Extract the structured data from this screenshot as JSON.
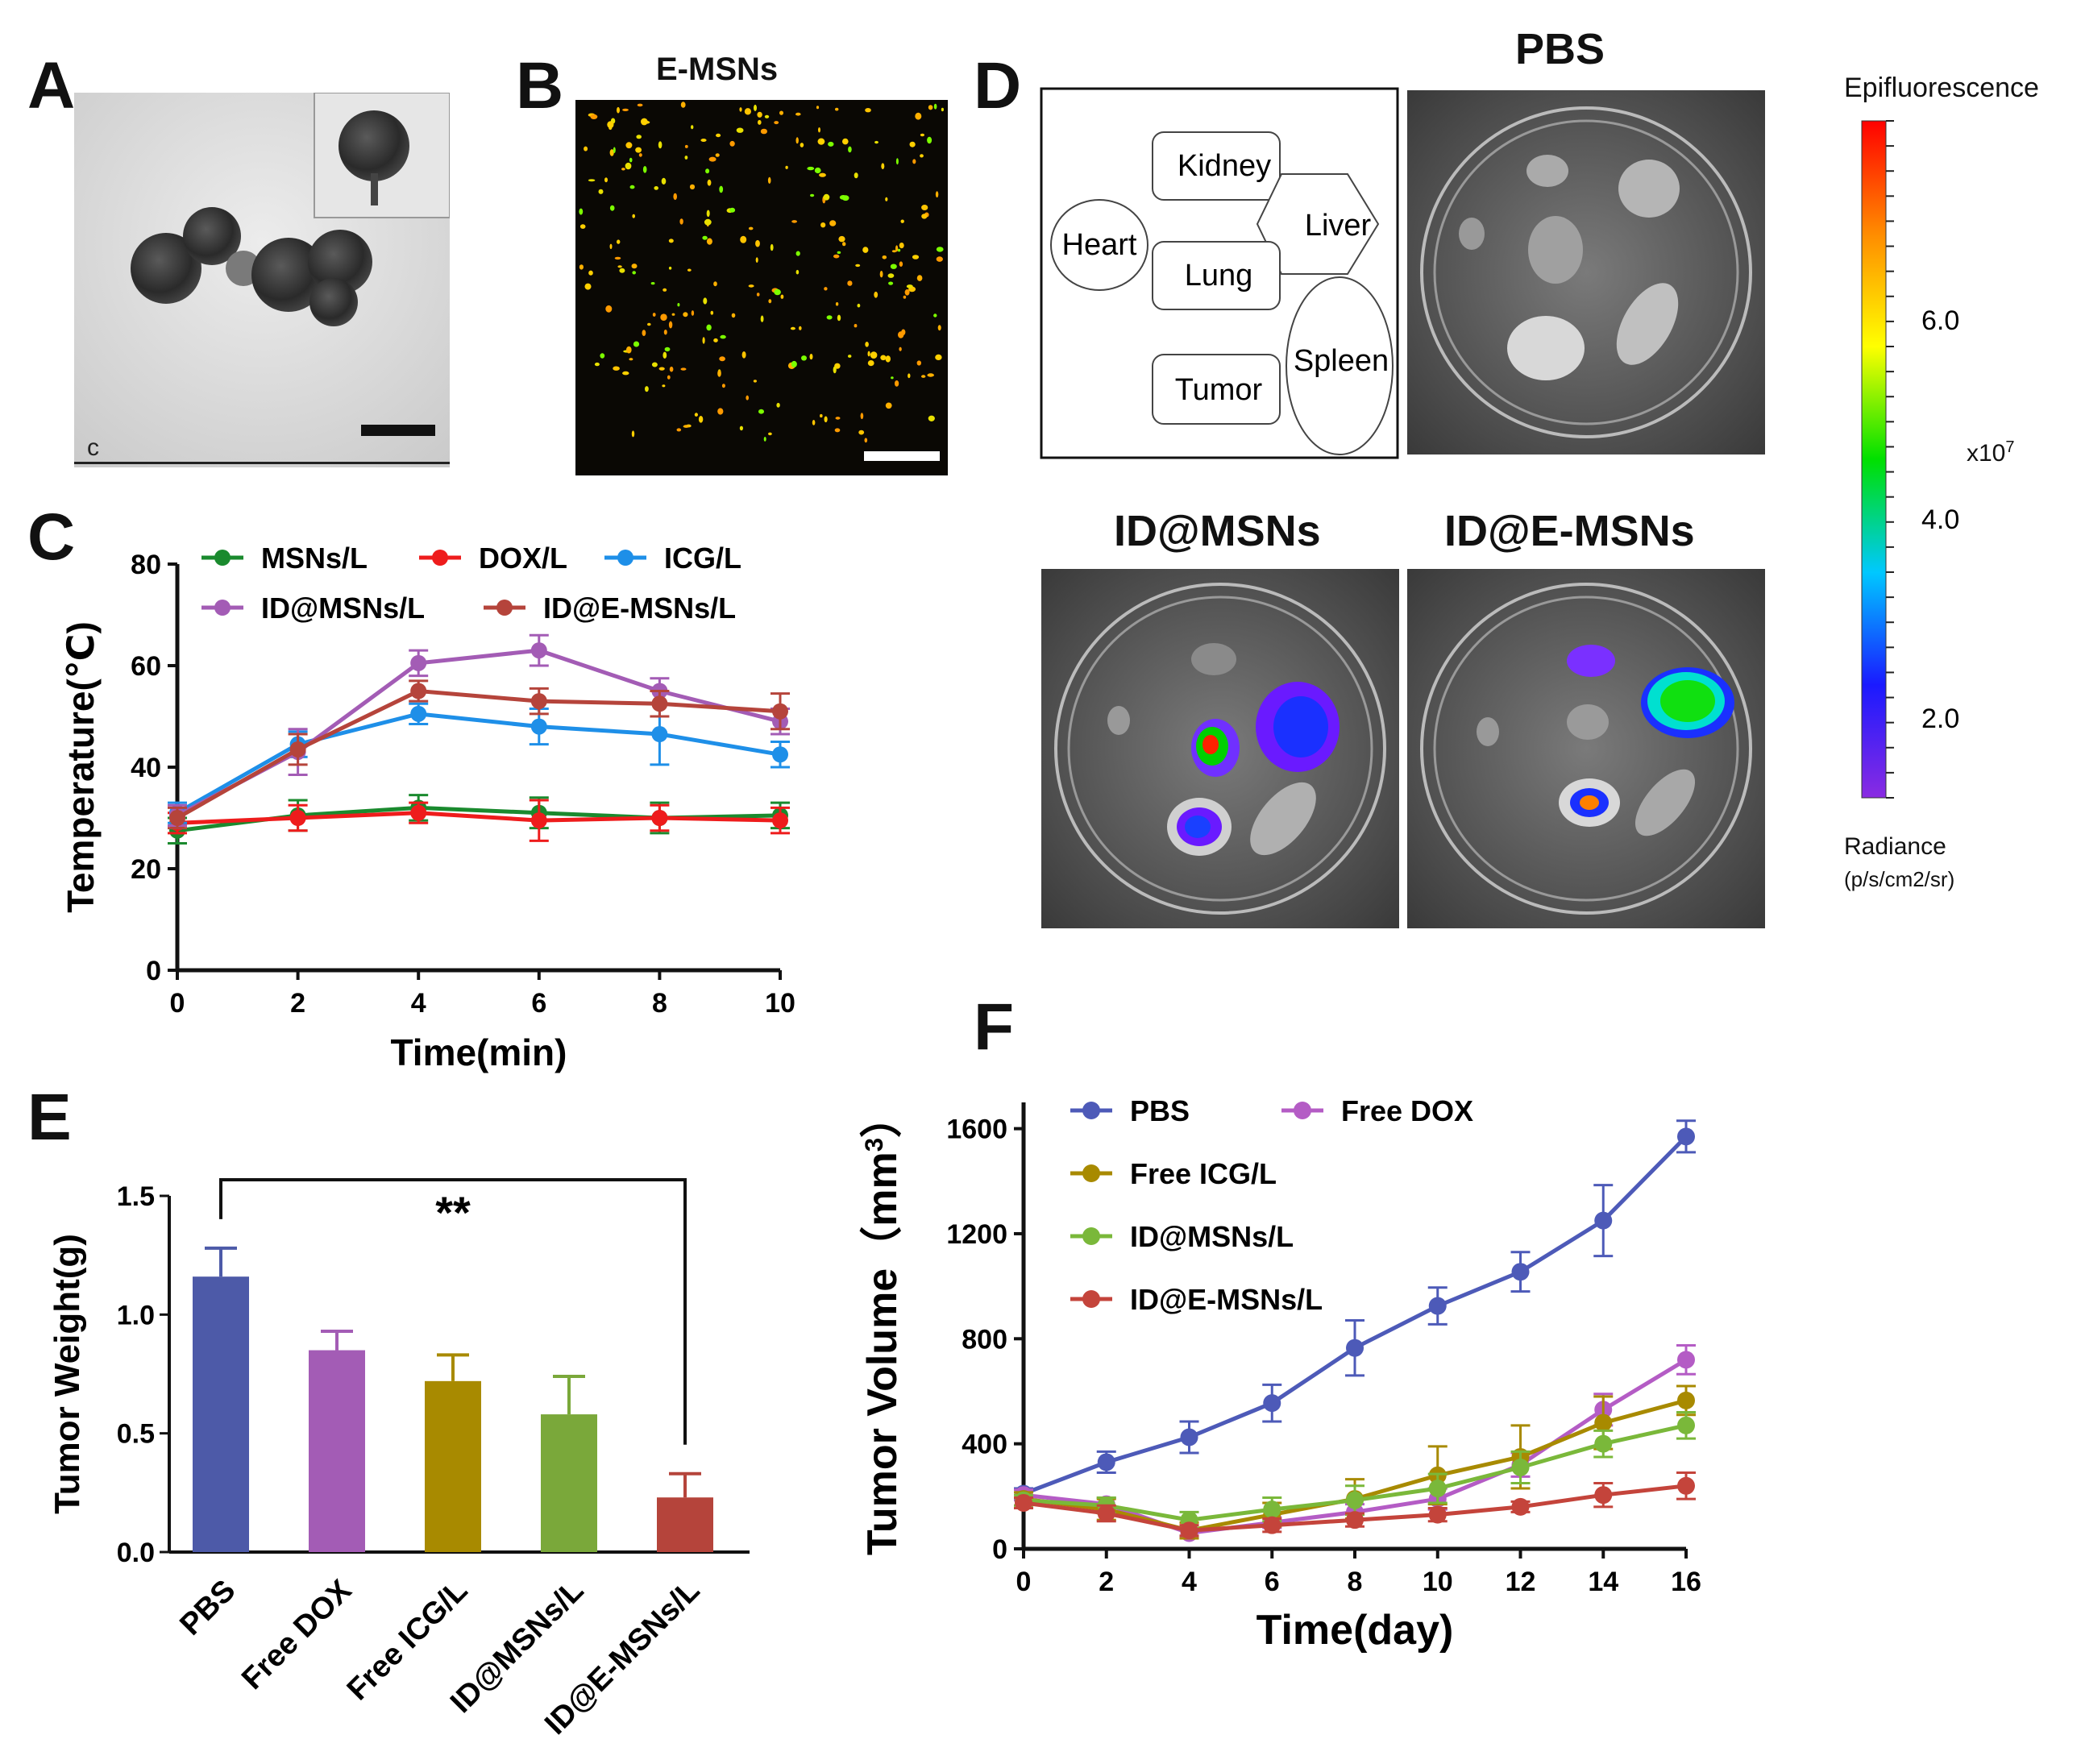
{
  "figure": {
    "panel_labels": {
      "a": "A",
      "b": "B",
      "c": "C",
      "d": "D",
      "e": "E",
      "f": "F"
    },
    "panel_a": {
      "corner_label": "c"
    },
    "panel_b": {
      "title": "E-MSNs"
    },
    "panel_d": {
      "schematic_labels": {
        "heart": "Heart",
        "kidney": "Kidney",
        "liver": "Liver",
        "lung": "Lung",
        "spleen": "Spleen",
        "tumor": "Tumor"
      },
      "image_titles": {
        "pbs": "PBS",
        "id_msns": "ID@MSNs",
        "id_e_msns": "ID@E-MSNs"
      },
      "colorbar": {
        "title": "Epifluorescence",
        "ticks": [
          "6.0",
          "4.0",
          "2.0"
        ],
        "tick_values": [
          6.0,
          4.0,
          2.0
        ],
        "range": [
          1.2,
          8.0
        ],
        "multiplier_base": "x10",
        "multiplier_exp": "7",
        "unit_title": "Radiance",
        "unit": "(p/s/cm2/sr)",
        "colors": [
          "#8a2be2",
          "#1a1aff",
          "#00c8ff",
          "#00e000",
          "#ffff00",
          "#ff8c00",
          "#ff0000"
        ]
      }
    }
  },
  "chart_data": [
    {
      "id": "C",
      "type": "line",
      "xlabel": "Time(min)",
      "ylabel": "Temperature(℃)",
      "xlim": [
        0,
        10
      ],
      "ylim": [
        0,
        80
      ],
      "xticks": [
        0,
        2,
        4,
        6,
        8,
        10
      ],
      "yticks": [
        0,
        20,
        40,
        60,
        80
      ],
      "x": [
        0,
        2,
        4,
        6,
        8,
        10
      ],
      "series": [
        {
          "name": "MSNs/L",
          "color": "#1a8a2e",
          "values": [
            27.5,
            30.5,
            32.0,
            31.0,
            30.0,
            30.5
          ],
          "errors": [
            2.5,
            3.0,
            2.5,
            3.0,
            3.0,
            2.5
          ]
        },
        {
          "name": "DOX/L",
          "color": "#ee1c1c",
          "values": [
            29.0,
            30.0,
            31.0,
            29.5,
            30.0,
            29.5
          ],
          "errors": [
            2.0,
            2.5,
            2.0,
            4.0,
            2.5,
            2.5
          ]
        },
        {
          "name": "ICG/L",
          "color": "#1e8fe8",
          "values": [
            31.0,
            44.5,
            50.5,
            48.0,
            46.5,
            42.5
          ],
          "errors": [
            2.0,
            2.5,
            2.0,
            3.5,
            6.0,
            2.5
          ]
        },
        {
          "name": "ID@MSNs/L",
          "color": "#a35cb5",
          "values": [
            30.5,
            43.0,
            60.5,
            63.0,
            55.0,
            49.0
          ],
          "errors": [
            2.0,
            4.5,
            2.5,
            3.0,
            2.5,
            2.5
          ]
        },
        {
          "name": "ID@E-MSNs/L",
          "color": "#b5443b",
          "values": [
            30.0,
            43.5,
            55.0,
            53.0,
            52.5,
            51.0
          ],
          "errors": [
            2.0,
            3.0,
            2.0,
            2.5,
            2.5,
            3.5
          ]
        }
      ]
    },
    {
      "id": "E",
      "type": "bar",
      "ylabel": "Tumor  Weight(g)",
      "ylim": [
        0,
        1.5
      ],
      "yticks": [
        "0.0",
        "0.5",
        "1.0",
        "1.5"
      ],
      "ytick_values": [
        0,
        0.5,
        1.0,
        1.5
      ],
      "categories": [
        "PBS",
        "Free DOX",
        "Free ICG/L",
        "ID@MSNs/L",
        "ID@E-MSNs/L"
      ],
      "values": [
        1.16,
        0.85,
        0.72,
        0.58,
        0.23
      ],
      "errors": [
        0.12,
        0.08,
        0.11,
        0.16,
        0.1
      ],
      "colors": [
        "#4d5aa8",
        "#a35cb5",
        "#a88a00",
        "#7aa83a",
        "#b5443b"
      ],
      "significance": {
        "from": "PBS",
        "to": "ID@E-MSNs/L",
        "label": "**"
      }
    },
    {
      "id": "F",
      "type": "line",
      "xlabel": "Time(day)",
      "ylabel": "Tumor Volume（mm",
      "ylabel_superscript": "3",
      "ylabel_close": "）",
      "xlim": [
        0,
        16
      ],
      "ylim": [
        0,
        1700
      ],
      "xticks": [
        0,
        2,
        4,
        6,
        8,
        10,
        12,
        14,
        16
      ],
      "yticks": [
        0,
        400,
        800,
        1200,
        1600
      ],
      "x": [
        0,
        2,
        4,
        6,
        8,
        10,
        12,
        14,
        16
      ],
      "series": [
        {
          "name": "PBS",
          "color": "#4d5ab8",
          "values": [
            210,
            330,
            425,
            555,
            765,
            925,
            1055,
            1250,
            1570
          ],
          "errors": [
            20,
            40,
            60,
            70,
            105,
            70,
            75,
            135,
            60
          ]
        },
        {
          "name": "Free DOX",
          "color": "#b45cc5",
          "values": [
            205,
            170,
            60,
            100,
            140,
            190,
            320,
            530,
            720
          ],
          "errors": [
            20,
            25,
            15,
            20,
            30,
            40,
            45,
            60,
            55
          ]
        },
        {
          "name": "Free ICG/L",
          "color": "#a88a00",
          "values": [
            190,
            150,
            70,
            130,
            190,
            280,
            350,
            480,
            565
          ],
          "errors": [
            25,
            40,
            30,
            45,
            75,
            110,
            120,
            100,
            55
          ]
        },
        {
          "name": "ID@MSNs/L",
          "color": "#7ab83a",
          "values": [
            185,
            165,
            110,
            150,
            185,
            230,
            310,
            400,
            470
          ],
          "errors": [
            20,
            30,
            30,
            45,
            55,
            55,
            60,
            50,
            50
          ]
        },
        {
          "name": "ID@E-MSNs/L",
          "color": "#c4443b",
          "values": [
            175,
            135,
            70,
            90,
            110,
            130,
            160,
            205,
            240
          ],
          "errors": [
            20,
            30,
            20,
            25,
            25,
            25,
            20,
            45,
            50
          ]
        }
      ]
    }
  ]
}
